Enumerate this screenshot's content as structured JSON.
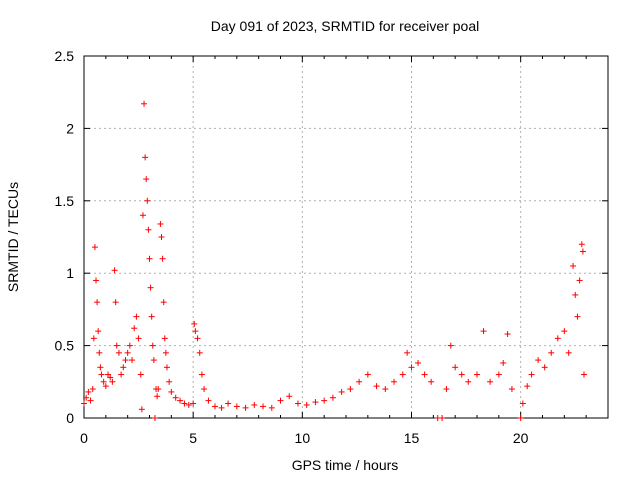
{
  "chart_data": {
    "type": "scatter",
    "title": "Day 091 of 2023, SRMTID for receiver poal",
    "xlabel": "GPS time / hours",
    "ylabel": "SRMTID / TECUs",
    "xlim": [
      0,
      24
    ],
    "ylim": [
      0,
      2.5
    ],
    "xticks": [
      0,
      5,
      10,
      15,
      20
    ],
    "yticks": [
      0,
      0.5,
      1,
      1.5,
      2,
      2.5
    ],
    "ytick_labels": [
      "0",
      "0.5",
      "1",
      "1.5",
      "2",
      "2.5"
    ],
    "grid": true,
    "marker": "+",
    "color": "#ff0000",
    "series": [
      {
        "name": "SRMTID",
        "points": [
          [
            0.0,
            0.1
          ],
          [
            0.1,
            0.14
          ],
          [
            0.2,
            0.18
          ],
          [
            0.3,
            0.12
          ],
          [
            0.4,
            0.2
          ],
          [
            0.45,
            0.55
          ],
          [
            0.5,
            1.18
          ],
          [
            0.55,
            0.95
          ],
          [
            0.6,
            0.8
          ],
          [
            0.65,
            0.6
          ],
          [
            0.7,
            0.45
          ],
          [
            0.75,
            0.35
          ],
          [
            0.8,
            0.3
          ],
          [
            0.9,
            0.25
          ],
          [
            1.0,
            0.22
          ],
          [
            1.1,
            0.3
          ],
          [
            1.2,
            0.28
          ],
          [
            1.3,
            0.25
          ],
          [
            1.4,
            1.02
          ],
          [
            1.45,
            0.8
          ],
          [
            1.5,
            0.5
          ],
          [
            1.6,
            0.45
          ],
          [
            1.7,
            0.3
          ],
          [
            1.8,
            0.35
          ],
          [
            1.9,
            0.4
          ],
          [
            2.0,
            0.45
          ],
          [
            2.1,
            0.5
          ],
          [
            2.2,
            0.4
          ],
          [
            2.3,
            0.62
          ],
          [
            2.4,
            0.7
          ],
          [
            2.5,
            0.55
          ],
          [
            2.6,
            0.3
          ],
          [
            2.65,
            0.06
          ],
          [
            2.7,
            1.4
          ],
          [
            2.75,
            2.17
          ],
          [
            2.8,
            1.8
          ],
          [
            2.85,
            1.65
          ],
          [
            2.9,
            1.5
          ],
          [
            2.95,
            1.3
          ],
          [
            3.0,
            1.1
          ],
          [
            3.05,
            0.9
          ],
          [
            3.1,
            0.7
          ],
          [
            3.15,
            0.5
          ],
          [
            3.2,
            0.4
          ],
          [
            3.25,
            0.0
          ],
          [
            3.3,
            0.2
          ],
          [
            3.35,
            0.15
          ],
          [
            3.4,
            0.2
          ],
          [
            3.5,
            1.34
          ],
          [
            3.55,
            1.25
          ],
          [
            3.6,
            1.1
          ],
          [
            3.65,
            0.8
          ],
          [
            3.7,
            0.55
          ],
          [
            3.75,
            0.45
          ],
          [
            3.8,
            0.35
          ],
          [
            3.9,
            0.25
          ],
          [
            4.0,
            0.18
          ],
          [
            4.2,
            0.14
          ],
          [
            4.4,
            0.12
          ],
          [
            4.6,
            0.1
          ],
          [
            4.8,
            0.09
          ],
          [
            5.0,
            0.1
          ],
          [
            5.05,
            0.65
          ],
          [
            5.1,
            0.6
          ],
          [
            5.2,
            0.55
          ],
          [
            5.3,
            0.45
          ],
          [
            5.4,
            0.3
          ],
          [
            5.5,
            0.2
          ],
          [
            5.7,
            0.12
          ],
          [
            6.0,
            0.08
          ],
          [
            6.3,
            0.07
          ],
          [
            6.6,
            0.1
          ],
          [
            7.0,
            0.08
          ],
          [
            7.4,
            0.07
          ],
          [
            7.8,
            0.09
          ],
          [
            8.2,
            0.08
          ],
          [
            8.6,
            0.07
          ],
          [
            9.0,
            0.12
          ],
          [
            9.4,
            0.15
          ],
          [
            9.8,
            0.1
          ],
          [
            10.2,
            0.09
          ],
          [
            10.6,
            0.11
          ],
          [
            11.0,
            0.12
          ],
          [
            11.4,
            0.14
          ],
          [
            11.8,
            0.18
          ],
          [
            12.2,
            0.2
          ],
          [
            12.6,
            0.25
          ],
          [
            13.0,
            0.3
          ],
          [
            13.4,
            0.22
          ],
          [
            13.8,
            0.2
          ],
          [
            14.2,
            0.25
          ],
          [
            14.6,
            0.3
          ],
          [
            14.8,
            0.45
          ],
          [
            15.0,
            0.35
          ],
          [
            15.3,
            0.38
          ],
          [
            15.6,
            0.3
          ],
          [
            15.9,
            0.25
          ],
          [
            16.2,
            0.0
          ],
          [
            16.4,
            0.0
          ],
          [
            16.6,
            0.2
          ],
          [
            16.8,
            0.5
          ],
          [
            17.0,
            0.35
          ],
          [
            17.3,
            0.3
          ],
          [
            17.6,
            0.25
          ],
          [
            18.0,
            0.3
          ],
          [
            18.3,
            0.6
          ],
          [
            18.6,
            0.25
          ],
          [
            19.0,
            0.3
          ],
          [
            19.2,
            0.38
          ],
          [
            19.4,
            0.58
          ],
          [
            19.6,
            0.2
          ],
          [
            20.0,
            0.0
          ],
          [
            20.1,
            0.1
          ],
          [
            20.3,
            0.22
          ],
          [
            20.5,
            0.3
          ],
          [
            20.8,
            0.4
          ],
          [
            21.1,
            0.35
          ],
          [
            21.4,
            0.45
          ],
          [
            21.7,
            0.55
          ],
          [
            22.0,
            0.6
          ],
          [
            22.2,
            0.45
          ],
          [
            22.4,
            1.05
          ],
          [
            22.5,
            0.85
          ],
          [
            22.6,
            0.7
          ],
          [
            22.7,
            0.95
          ],
          [
            22.8,
            1.2
          ],
          [
            22.85,
            1.15
          ],
          [
            22.9,
            0.3
          ]
        ]
      }
    ]
  }
}
